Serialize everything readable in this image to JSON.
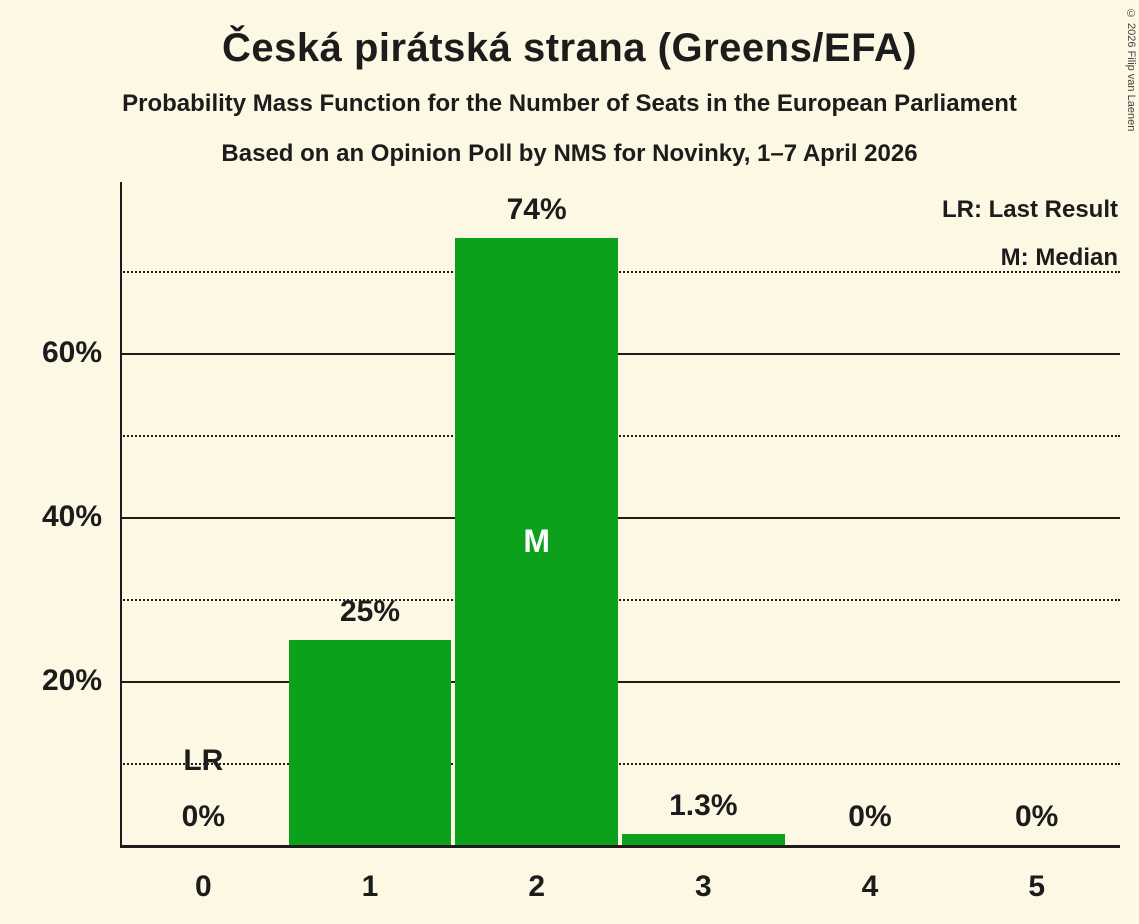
{
  "page": {
    "background": "#fcf8e3",
    "copyright": "© 2026 Filip van Laenen"
  },
  "header": {
    "title": "Česká pirátská strana (Greens/EFA)",
    "subtitle1": "Probability Mass Function for the Number of Seats in the European Parliament",
    "subtitle2": "Based on an Opinion Poll by NMS for Novinky, 1–7 April 2026"
  },
  "legend": {
    "lr": "LR: Last Result",
    "m": "M: Median"
  },
  "chart_data": {
    "type": "bar",
    "title": "Česká pirátská strana (Greens/EFA)",
    "xlabel": "",
    "ylabel": "",
    "categories": [
      "0",
      "1",
      "2",
      "3",
      "4",
      "5"
    ],
    "values": [
      0,
      25,
      74,
      1.3,
      0,
      0
    ],
    "value_labels": [
      "0%",
      "25%",
      "74%",
      "1.3%",
      "0%",
      "0%"
    ],
    "bar_color": "#0ba11a",
    "median_index": 2,
    "median_label": "M",
    "last_result_index": 0,
    "last_result_label": "LR",
    "y_tick_values": [
      20,
      40,
      60
    ],
    "y_tick_labels": [
      "20%",
      "40%",
      "60%"
    ],
    "solid_gridlines": [
      20,
      40,
      60
    ],
    "dotted_gridlines": [
      10,
      30,
      50,
      70
    ],
    "ylim": [
      0,
      80.8
    ],
    "grid": true,
    "legend_position": "top-right"
  }
}
